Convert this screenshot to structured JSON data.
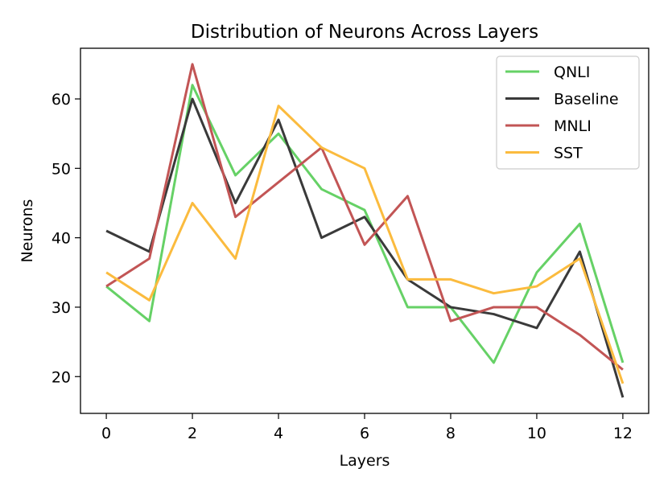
{
  "chart_data": {
    "type": "line",
    "title": "Distribution of Neurons Across Layers",
    "xlabel": "Layers",
    "ylabel": "Neurons",
    "x": [
      0,
      1,
      2,
      3,
      4,
      5,
      6,
      7,
      8,
      9,
      10,
      11,
      12
    ],
    "xlim": [
      -0.6,
      12.6
    ],
    "ylim": [
      14.7,
      67.3
    ],
    "xticks": [
      0,
      2,
      4,
      6,
      8,
      10,
      12
    ],
    "yticks": [
      20,
      30,
      40,
      50,
      60
    ],
    "grid": false,
    "legend_position": "top-right",
    "series": [
      {
        "name": "QNLI",
        "color": "#66d166",
        "values": [
          33,
          28,
          62,
          49,
          55,
          47,
          44,
          30,
          30,
          22,
          35,
          42,
          22
        ]
      },
      {
        "name": "Baseline",
        "color": "#3a3a3a",
        "values": [
          41,
          38,
          60,
          45,
          57,
          40,
          43,
          34,
          30,
          29,
          27,
          38,
          17
        ]
      },
      {
        "name": "MNLI",
        "color": "#c25555",
        "values": [
          33,
          37,
          65,
          43,
          48,
          53,
          39,
          46,
          28,
          30,
          30,
          26,
          21
        ]
      },
      {
        "name": "SST",
        "color": "#fbbb3e",
        "values": [
          35,
          31,
          45,
          37,
          59,
          53,
          50,
          34,
          34,
          32,
          33,
          37,
          19
        ]
      }
    ]
  }
}
